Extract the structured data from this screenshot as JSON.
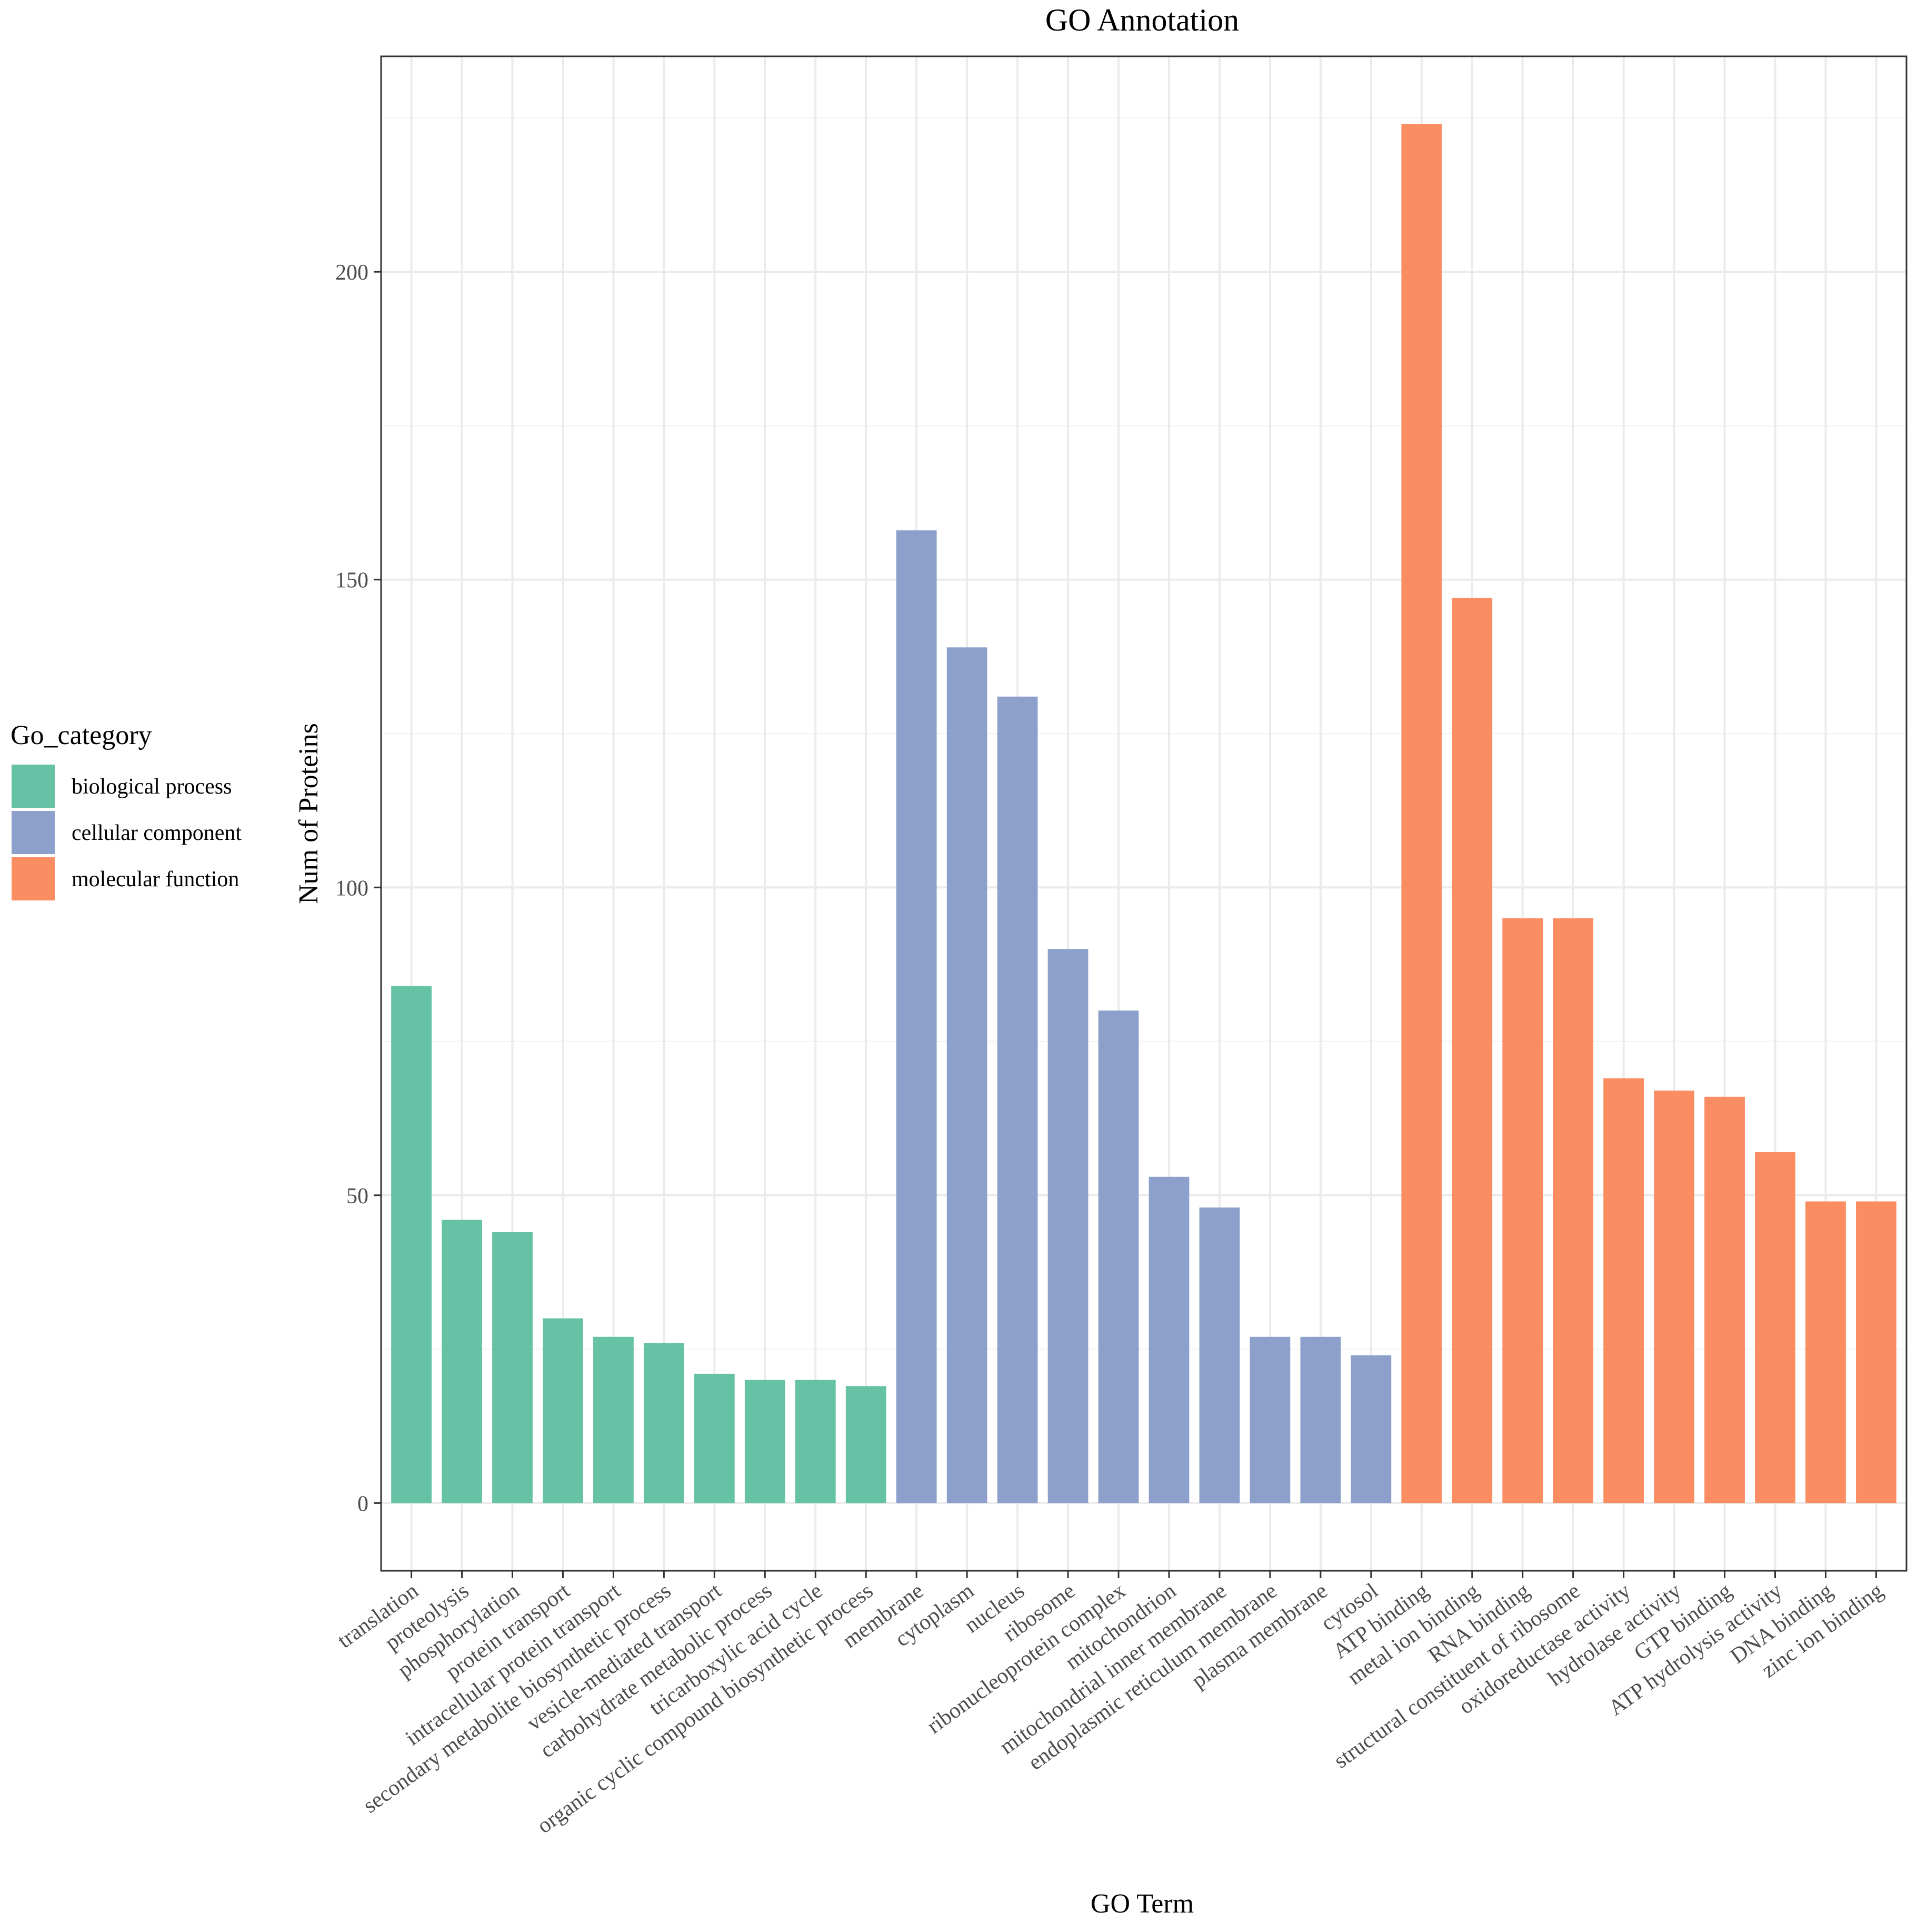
{
  "chart_data": {
    "type": "bar",
    "title": "GO Annotation",
    "xlabel": "GO Term",
    "ylabel": "Num of Proteins",
    "ylim": [
      -11,
      235
    ],
    "yticks": [
      0,
      50,
      100,
      150,
      200
    ],
    "grid": true,
    "legend": {
      "title": "Go_category",
      "placement": "left",
      "entries": [
        {
          "name": "biological process",
          "color": "#66C2A5"
        },
        {
          "name": "cellular component",
          "color": "#8DA0CB"
        },
        {
          "name": "molecular function",
          "color": "#FC8D62"
        }
      ]
    },
    "bars": [
      {
        "category": "translation",
        "group": "biological process",
        "value": 84
      },
      {
        "category": "proteolysis",
        "group": "biological process",
        "value": 46
      },
      {
        "category": "phosphorylation",
        "group": "biological process",
        "value": 44
      },
      {
        "category": "protein transport",
        "group": "biological process",
        "value": 30
      },
      {
        "category": "intracellular protein transport",
        "group": "biological process",
        "value": 27
      },
      {
        "category": "secondary metabolite biosynthetic process",
        "group": "biological process",
        "value": 26
      },
      {
        "category": "vesicle-mediated transport",
        "group": "biological process",
        "value": 21
      },
      {
        "category": "carbohydrate metabolic process",
        "group": "biological process",
        "value": 20
      },
      {
        "category": "tricarboxylic acid cycle",
        "group": "biological process",
        "value": 20
      },
      {
        "category": "organic cyclic compound biosynthetic process",
        "group": "biological process",
        "value": 19
      },
      {
        "category": "membrane",
        "group": "cellular component",
        "value": 158
      },
      {
        "category": "cytoplasm",
        "group": "cellular component",
        "value": 139
      },
      {
        "category": "nucleus",
        "group": "cellular component",
        "value": 131
      },
      {
        "category": "ribosome",
        "group": "cellular component",
        "value": 90
      },
      {
        "category": "ribonucleoprotein complex",
        "group": "cellular component",
        "value": 80
      },
      {
        "category": "mitochondrion",
        "group": "cellular component",
        "value": 53
      },
      {
        "category": "mitochondrial inner membrane",
        "group": "cellular component",
        "value": 48
      },
      {
        "category": "endoplasmic reticulum membrane",
        "group": "cellular component",
        "value": 27
      },
      {
        "category": "plasma membrane",
        "group": "cellular component",
        "value": 27
      },
      {
        "category": "cytosol",
        "group": "cellular component",
        "value": 24
      },
      {
        "category": "ATP binding",
        "group": "molecular function",
        "value": 224
      },
      {
        "category": "metal ion binding",
        "group": "molecular function",
        "value": 147
      },
      {
        "category": "RNA binding",
        "group": "molecular function",
        "value": 95
      },
      {
        "category": "structural constituent of ribosome",
        "group": "molecular function",
        "value": 95
      },
      {
        "category": "oxidoreductase activity",
        "group": "molecular function",
        "value": 69
      },
      {
        "category": "hydrolase activity",
        "group": "molecular function",
        "value": 67
      },
      {
        "category": "GTP binding",
        "group": "molecular function",
        "value": 66
      },
      {
        "category": "ATP hydrolysis activity",
        "group": "molecular function",
        "value": 57
      },
      {
        "category": "DNA binding",
        "group": "molecular function",
        "value": 49
      },
      {
        "category": "zinc ion binding",
        "group": "molecular function",
        "value": 49
      }
    ]
  }
}
